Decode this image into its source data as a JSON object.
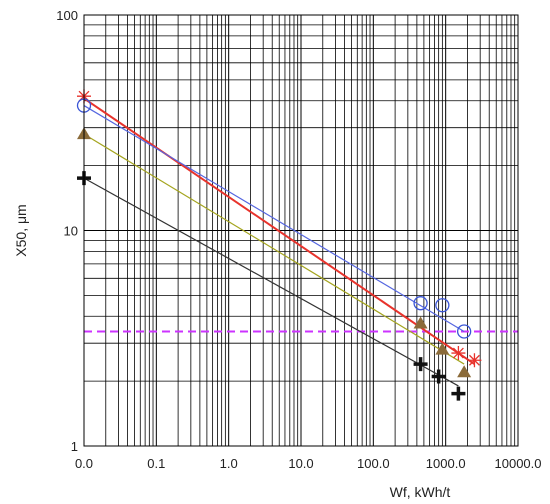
{
  "chart_data": {
    "type": "line",
    "title": "",
    "xlabel": "Wf,   kWh/t",
    "ylabel": "X50, μm",
    "x_scale": "log",
    "y_scale": "log",
    "xlim": [
      0.01,
      10000
    ],
    "ylim": [
      1,
      100
    ],
    "x_tick_values": [
      0.01,
      0.1,
      1,
      10,
      100,
      1000,
      10000
    ],
    "x_tick_labels": [
      "0.0",
      "0.1",
      "1.0",
      "10.0",
      "100.0",
      "1000.0",
      "10000.0"
    ],
    "y_tick_values": [
      1,
      10,
      100
    ],
    "y_tick_labels": [
      "1",
      "10",
      "100"
    ],
    "grid": true,
    "reference_line": {
      "y": 3.4,
      "color": "#cc33ff",
      "style": "dashed"
    },
    "series": [
      {
        "marker": "asterisk",
        "color": "#e8332c",
        "line_color": "#e8332c",
        "points": [
          [
            0.01,
            42
          ],
          [
            1500,
            2.7
          ],
          [
            2500,
            2.5
          ]
        ],
        "fit": [
          [
            0.01,
            41
          ],
          [
            2500,
            2.4
          ]
        ]
      },
      {
        "marker": "circle",
        "color": "#3a55d6",
        "line_color": "#5566e0",
        "points": [
          [
            0.01,
            38
          ],
          [
            450,
            4.6
          ],
          [
            900,
            4.5
          ],
          [
            1800,
            3.4
          ]
        ],
        "fit": [
          [
            0.01,
            38
          ],
          [
            1800,
            3.4
          ]
        ]
      },
      {
        "marker": "triangle",
        "color": "#8b6b3a",
        "line_color": "#a5a51f",
        "points": [
          [
            0.01,
            28
          ],
          [
            450,
            3.7
          ],
          [
            900,
            2.8
          ],
          [
            1800,
            2.2
          ]
        ],
        "fit": [
          [
            0.01,
            28
          ],
          [
            1800,
            2.4
          ]
        ]
      },
      {
        "marker": "cross",
        "color": "#111111",
        "line_color": "#333333",
        "points": [
          [
            0.01,
            17.5
          ],
          [
            450,
            2.4
          ],
          [
            800,
            2.1
          ],
          [
            1500,
            1.75
          ]
        ],
        "fit": [
          [
            0.01,
            17.5
          ],
          [
            1500,
            1.9
          ]
        ]
      }
    ]
  }
}
